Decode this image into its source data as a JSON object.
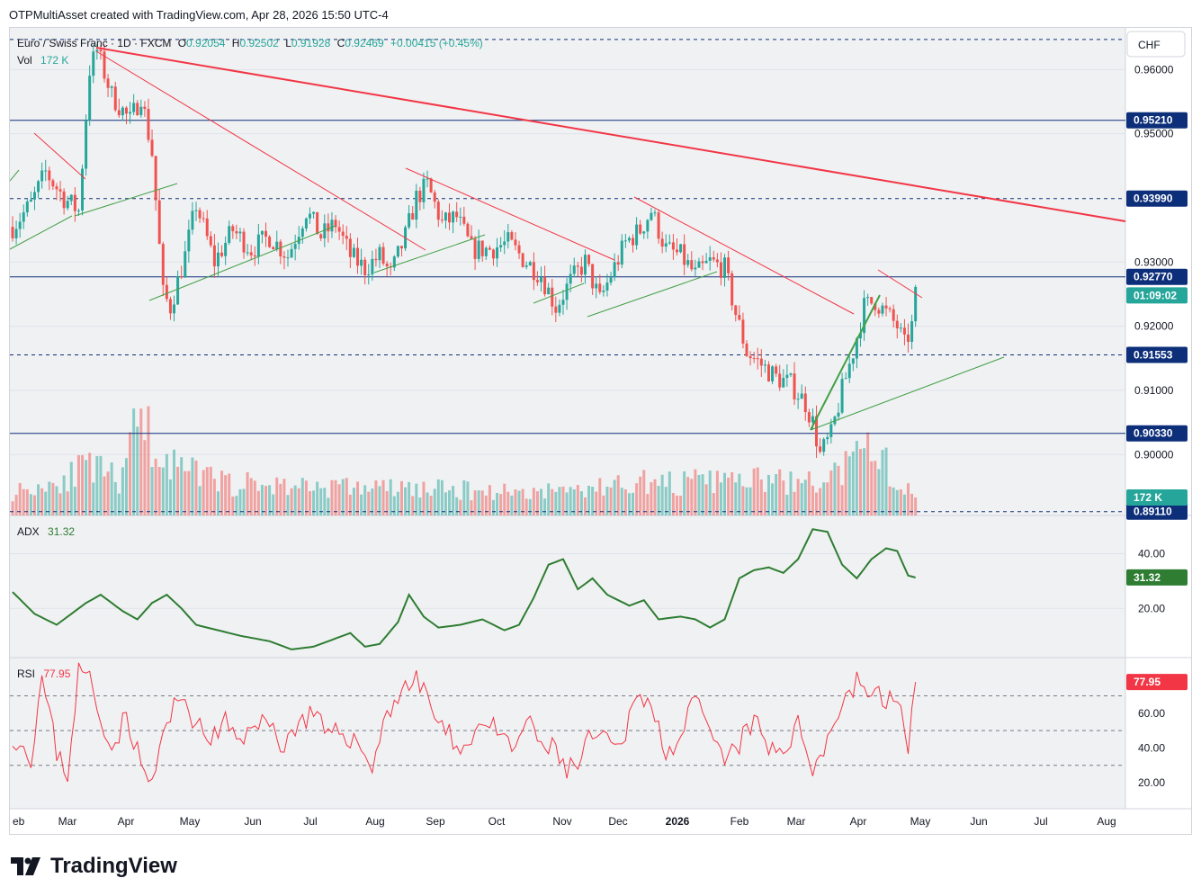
{
  "header": {
    "text": "OTPMultiAsset created with TradingView.com, Apr 28, 2026 15:50 UTC-4"
  },
  "currency": "CHF",
  "legend": {
    "symbol": "Euro / Swiss Franc · 1D · FXCM",
    "o_label": "O",
    "o": "0.92054",
    "h_label": "H",
    "h": "0.92502",
    "l_label": "L",
    "l": "0.91928",
    "c_label": "C",
    "c": "0.92469",
    "change": "+0.00415 (+0.45%)",
    "vol_label": "Vol",
    "vol": "172 K"
  },
  "adx_legend": {
    "label": "ADX",
    "value": "31.32"
  },
  "rsi_legend": {
    "label": "RSI",
    "value": "77.95"
  },
  "brand": "TradingView",
  "colors": {
    "up": "#26a69a",
    "down": "#ef5350",
    "level": "#0d2f7a",
    "adx": "#2e7d32",
    "rsi": "#f23645",
    "trend_red": "#f23645",
    "trend_green": "#43a047"
  },
  "chart_data": {
    "type": "candlestick",
    "price_axis": {
      "ylim": [
        0.8905,
        0.9665
      ],
      "ticks": [
        "0.96000",
        "0.95000",
        "0.93000",
        "0.92000",
        "0.91000",
        "0.90000"
      ]
    },
    "price_labels": [
      {
        "text": "0.95210",
        "value": 0.9521,
        "bg": "#0d2f7a",
        "line": "solid"
      },
      {
        "text": "0.93990",
        "value": 0.9399,
        "bg": "#0d2f7a",
        "line": "dashed"
      },
      {
        "text": "0.92770",
        "value": 0.9277,
        "bg": "#0d2f7a",
        "line": "solid"
      },
      {
        "text": "01:09:02",
        "value": 0.9248,
        "bg": "#26a69a",
        "line": "none"
      },
      {
        "text": "0.91553",
        "value": 0.91553,
        "bg": "#0d2f7a",
        "line": "dashed"
      },
      {
        "text": "0.90330",
        "value": 0.9033,
        "bg": "#0d2f7a",
        "line": "solid"
      },
      {
        "text": "0.89110",
        "value": 0.8911,
        "bg": "#0d2f7a",
        "line": "dashed"
      }
    ],
    "top_dashed_level": 0.9647,
    "volume_label": "172 K",
    "x_axis": {
      "labels": [
        "eb",
        "Mar",
        "Apr",
        "May",
        "Jun",
        "Jul",
        "Aug",
        "Sep",
        "Oct",
        "Nov",
        "Dec",
        "2026",
        "Feb",
        "Mar",
        "Apr",
        "May",
        "Jun",
        "Jul",
        "Aug"
      ]
    },
    "close_anchors": [
      [
        0,
        0.9355
      ],
      [
        5,
        0.939
      ],
      [
        9,
        0.944
      ],
      [
        14,
        0.94
      ],
      [
        18,
        0.938
      ],
      [
        21,
        0.96
      ],
      [
        23,
        0.963
      ],
      [
        27,
        0.956
      ],
      [
        32,
        0.952
      ],
      [
        35,
        0.956
      ],
      [
        38,
        0.947
      ],
      [
        41,
        0.925
      ],
      [
        43,
        0.923
      ],
      [
        47,
        0.931
      ],
      [
        50,
        0.939
      ],
      [
        55,
        0.93
      ],
      [
        60,
        0.935
      ],
      [
        65,
        0.932
      ],
      [
        70,
        0.934
      ],
      [
        75,
        0.931
      ],
      [
        80,
        0.938
      ],
      [
        84,
        0.934
      ],
      [
        88,
        0.936
      ],
      [
        92,
        0.931
      ],
      [
        96,
        0.929
      ],
      [
        100,
        0.931
      ],
      [
        103,
        0.928
      ],
      [
        107,
        0.934
      ],
      [
        110,
        0.94
      ],
      [
        113,
        0.942
      ],
      [
        117,
        0.936
      ],
      [
        121,
        0.937
      ],
      [
        125,
        0.932
      ],
      [
        130,
        0.932
      ],
      [
        135,
        0.933
      ],
      [
        140,
        0.93
      ],
      [
        144,
        0.928
      ],
      [
        148,
        0.923
      ],
      [
        152,
        0.927
      ],
      [
        156,
        0.93
      ],
      [
        160,
        0.924
      ],
      [
        163,
        0.928
      ],
      [
        167,
        0.933
      ],
      [
        171,
        0.935
      ],
      [
        174,
        0.938
      ],
      [
        178,
        0.932
      ],
      [
        182,
        0.931
      ],
      [
        186,
        0.928
      ],
      [
        190,
        0.93
      ],
      [
        194,
        0.929
      ],
      [
        197,
        0.922
      ],
      [
        200,
        0.916
      ],
      [
        204,
        0.914
      ],
      [
        208,
        0.912
      ],
      [
        212,
        0.911
      ],
      [
        216,
        0.908
      ],
      [
        218,
        0.905
      ],
      [
        220,
        0.9
      ],
      [
        223,
        0.903
      ],
      [
        226,
        0.91
      ],
      [
        229,
        0.916
      ],
      [
        232,
        0.923
      ],
      [
        235,
        0.924
      ],
      [
        238,
        0.922
      ],
      [
        241,
        0.92
      ],
      [
        243,
        0.917
      ],
      [
        245,
        0.92
      ],
      [
        246,
        0.9247
      ]
    ],
    "volume_anchors": [
      [
        0,
        30
      ],
      [
        10,
        40
      ],
      [
        20,
        60
      ],
      [
        30,
        45
      ],
      [
        34,
        120
      ],
      [
        36,
        150
      ],
      [
        38,
        70
      ],
      [
        40,
        90
      ],
      [
        44,
        60
      ],
      [
        60,
        40
      ],
      [
        100,
        35
      ],
      [
        140,
        30
      ],
      [
        160,
        35
      ],
      [
        170,
        45
      ],
      [
        175,
        40
      ],
      [
        200,
        45
      ],
      [
        220,
        40
      ],
      [
        230,
        70
      ],
      [
        236,
        90
      ],
      [
        240,
        40
      ],
      [
        246,
        25
      ]
    ],
    "adx_axis": {
      "ylim": [
        2,
        54
      ],
      "ticks": [
        "40.00",
        "20.00"
      ]
    },
    "adx_anchors": [
      [
        0,
        26
      ],
      [
        6,
        18
      ],
      [
        12,
        14
      ],
      [
        20,
        22
      ],
      [
        24,
        25
      ],
      [
        30,
        19
      ],
      [
        34,
        16
      ],
      [
        38,
        22
      ],
      [
        42,
        25
      ],
      [
        46,
        20
      ],
      [
        50,
        14
      ],
      [
        56,
        12
      ],
      [
        62,
        10
      ],
      [
        70,
        8
      ],
      [
        76,
        5
      ],
      [
        82,
        6
      ],
      [
        86,
        8
      ],
      [
        92,
        11
      ],
      [
        96,
        6
      ],
      [
        100,
        7
      ],
      [
        105,
        15
      ],
      [
        108,
        25
      ],
      [
        112,
        17
      ],
      [
        116,
        13
      ],
      [
        122,
        14
      ],
      [
        128,
        16
      ],
      [
        134,
        12
      ],
      [
        138,
        14
      ],
      [
        142,
        24
      ],
      [
        146,
        36
      ],
      [
        150,
        38
      ],
      [
        154,
        27
      ],
      [
        158,
        31
      ],
      [
        162,
        25
      ],
      [
        168,
        21
      ],
      [
        172,
        23
      ],
      [
        176,
        16
      ],
      [
        182,
        17
      ],
      [
        186,
        16
      ],
      [
        190,
        13
      ],
      [
        194,
        16
      ],
      [
        198,
        31
      ],
      [
        202,
        34
      ],
      [
        206,
        35
      ],
      [
        210,
        33
      ],
      [
        214,
        38
      ],
      [
        218,
        49
      ],
      [
        222,
        48
      ],
      [
        226,
        36
      ],
      [
        230,
        31
      ],
      [
        234,
        38
      ],
      [
        238,
        42
      ],
      [
        241,
        41
      ],
      [
        244,
        32
      ],
      [
        246,
        31.3
      ]
    ],
    "rsi_axis": {
      "ylim": [
        5,
        92
      ],
      "ticks": [
        "60.00",
        "40.00",
        "20.00"
      ],
      "upper_band": 70,
      "middle_band": 50,
      "lower_band": 30
    },
    "rsi_anchors": [
      [
        0,
        48
      ],
      [
        5,
        35
      ],
      [
        8,
        80
      ],
      [
        12,
        38
      ],
      [
        15,
        25
      ],
      [
        18,
        85
      ],
      [
        21,
        80
      ],
      [
        24,
        55
      ],
      [
        28,
        42
      ],
      [
        31,
        60
      ],
      [
        35,
        30
      ],
      [
        38,
        18
      ],
      [
        41,
        48
      ],
      [
        44,
        62
      ],
      [
        47,
        70
      ],
      [
        50,
        52
      ],
      [
        54,
        45
      ],
      [
        58,
        55
      ],
      [
        62,
        40
      ],
      [
        66,
        58
      ],
      [
        70,
        52
      ],
      [
        74,
        42
      ],
      [
        78,
        55
      ],
      [
        82,
        60
      ],
      [
        86,
        45
      ],
      [
        90,
        50
      ],
      [
        94,
        42
      ],
      [
        98,
        30
      ],
      [
        102,
        60
      ],
      [
        106,
        74
      ],
      [
        110,
        78
      ],
      [
        113,
        72
      ],
      [
        116,
        52
      ],
      [
        120,
        45
      ],
      [
        124,
        40
      ],
      [
        128,
        58
      ],
      [
        132,
        48
      ],
      [
        136,
        38
      ],
      [
        140,
        55
      ],
      [
        144,
        42
      ],
      [
        148,
        38
      ],
      [
        151,
        28
      ],
      [
        154,
        30
      ],
      [
        158,
        48
      ],
      [
        162,
        42
      ],
      [
        166,
        38
      ],
      [
        170,
        76
      ],
      [
        174,
        62
      ],
      [
        178,
        40
      ],
      [
        182,
        45
      ],
      [
        186,
        68
      ],
      [
        190,
        46
      ],
      [
        194,
        32
      ],
      [
        198,
        42
      ],
      [
        202,
        56
      ],
      [
        206,
        38
      ],
      [
        210,
        40
      ],
      [
        214,
        52
      ],
      [
        218,
        30
      ],
      [
        222,
        45
      ],
      [
        226,
        66
      ],
      [
        230,
        78
      ],
      [
        234,
        72
      ],
      [
        238,
        66
      ],
      [
        241,
        72
      ],
      [
        244,
        38
      ],
      [
        246,
        77.95
      ]
    ]
  }
}
